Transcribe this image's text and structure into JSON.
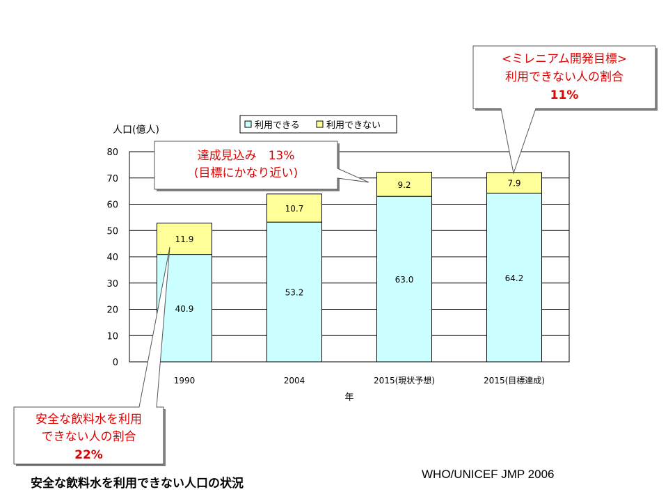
{
  "chart_data": {
    "type": "bar",
    "stacked": true,
    "title": "安全な飲料水を利用できない人口の状況",
    "source": "WHO/UNICEF JMP 2006",
    "xlabel": "年",
    "ylabel": "人口(億人)",
    "ylim": [
      0,
      80
    ],
    "yticks": [
      0,
      10,
      20,
      30,
      40,
      50,
      60,
      70,
      80
    ],
    "grid": true,
    "legend_position": "top",
    "categories": [
      "1990",
      "2004",
      "2015(現状予想)",
      "2015(目標達成)"
    ],
    "series": [
      {
        "name": "利用できる",
        "color": "#ccffff",
        "values": [
          40.9,
          53.2,
          63.0,
          64.2
        ]
      },
      {
        "name": "利用できない",
        "color": "#ffff99",
        "values": [
          11.9,
          10.7,
          9.2,
          7.9
        ]
      }
    ],
    "annotations": [
      {
        "lines": [
          "安全な飲料水を利用",
          "できない人の割合"
        ],
        "value": "22%",
        "target": "1990"
      },
      {
        "lines": [
          "達成見込み　13%",
          "(目標にかなり近い)"
        ],
        "target": "2015(現状予想)"
      },
      {
        "lines": [
          "<ミレニアム開発目標>",
          "利用できない人の割合"
        ],
        "value": "11%",
        "target": "2015(目標達成)"
      }
    ]
  }
}
